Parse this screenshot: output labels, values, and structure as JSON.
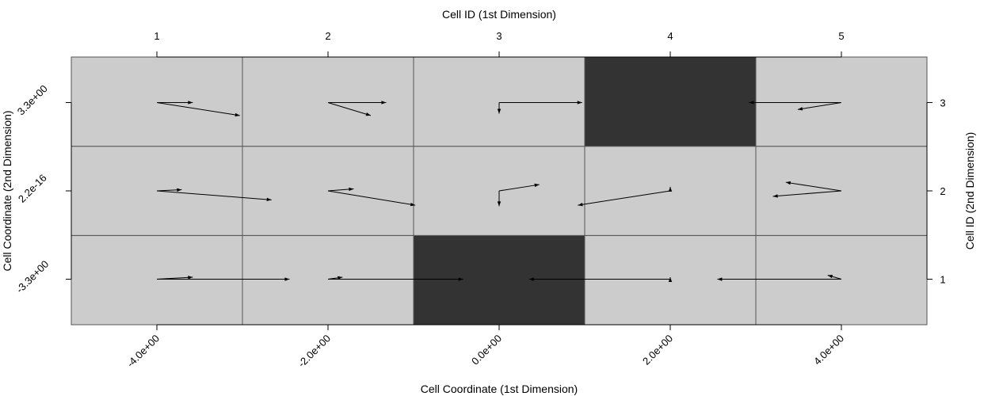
{
  "chart_data": {
    "type": "heatmap",
    "title": "",
    "top_axis": {
      "title": "Cell ID (1st Dimension)",
      "ticks": [
        "1",
        "2",
        "3",
        "4",
        "5"
      ]
    },
    "bottom_axis": {
      "title": "Cell Coordinate (1st Dimension)",
      "ticks": [
        "-4.0e+00",
        "-2.0e+00",
        "0.0e+00",
        "2.0e+00",
        "4.0e+00"
      ]
    },
    "left_axis": {
      "title": "Cell Coordinate (2nd Dimension)",
      "ticks": [
        "-3.3e+00",
        "2.2e-16",
        "3.3e+00"
      ]
    },
    "right_axis": {
      "title": "Cell ID (2nd Dimension)",
      "ticks": [
        "1",
        "2",
        "3"
      ]
    },
    "x_range": [
      -5,
      5
    ],
    "y_range": [
      -5,
      5
    ],
    "x_coords": [
      -4,
      -2,
      0,
      2,
      4
    ],
    "y_coords": [
      -3.3,
      0,
      3.3
    ],
    "colors": {
      "free": "#cccccc",
      "obstacle": "#333333",
      "grid": "#555555",
      "arrow": "#000000"
    },
    "cells": [
      {
        "col": 1,
        "row": 1,
        "obstacle": false,
        "arrows": [
          [
            0.42,
            0.075
          ],
          [
            1.55,
            0.0
          ]
        ]
      },
      {
        "col": 2,
        "row": 1,
        "obstacle": false,
        "arrows": [
          [
            0.17,
            0.075
          ],
          [
            1.58,
            0.0
          ]
        ]
      },
      {
        "col": 3,
        "row": 1,
        "obstacle": true,
        "arrows": []
      },
      {
        "col": 4,
        "row": 1,
        "obstacle": false,
        "arrows": [
          [
            0.0,
            0.075
          ],
          [
            -1.65,
            0.0
          ]
        ]
      },
      {
        "col": 5,
        "row": 1,
        "obstacle": false,
        "arrows": [
          [
            -0.16,
            0.15
          ],
          [
            -1.45,
            0.0
          ]
        ]
      },
      {
        "col": 1,
        "row": 2,
        "obstacle": false,
        "arrows": [
          [
            0.29,
            0.045
          ],
          [
            1.34,
            -0.335
          ]
        ]
      },
      {
        "col": 2,
        "row": 2,
        "obstacle": false,
        "arrows": [
          [
            0.3,
            0.075
          ],
          [
            1.02,
            -0.535
          ]
        ]
      },
      {
        "col": 3,
        "row": 2,
        "obstacle": false,
        "arrows": [
          [
            0.47,
            0.235
          ],
          [
            0.0,
            -0.575
          ]
        ]
      },
      {
        "col": 4,
        "row": 2,
        "obstacle": false,
        "arrows": [
          [
            0.0,
            0.15
          ],
          [
            -1.08,
            -0.535
          ]
        ]
      },
      {
        "col": 5,
        "row": 2,
        "obstacle": false,
        "arrows": [
          [
            -0.65,
            0.32
          ],
          [
            -0.8,
            -0.205
          ]
        ]
      },
      {
        "col": 1,
        "row": 3,
        "obstacle": false,
        "arrows": [
          [
            0.42,
            0.0
          ],
          [
            0.97,
            -0.485
          ]
        ]
      },
      {
        "col": 2,
        "row": 3,
        "obstacle": false,
        "arrows": [
          [
            0.68,
            0.0
          ],
          [
            0.5,
            -0.485
          ]
        ]
      },
      {
        "col": 3,
        "row": 3,
        "obstacle": false,
        "arrows": [
          [
            0.0,
            -0.415
          ],
          [
            0.97,
            0.0
          ]
        ]
      },
      {
        "col": 4,
        "row": 3,
        "obstacle": true,
        "arrows": []
      },
      {
        "col": 5,
        "row": 3,
        "obstacle": false,
        "arrows": [
          [
            -1.08,
            0.0
          ],
          [
            -0.51,
            -0.26
          ]
        ]
      }
    ]
  }
}
